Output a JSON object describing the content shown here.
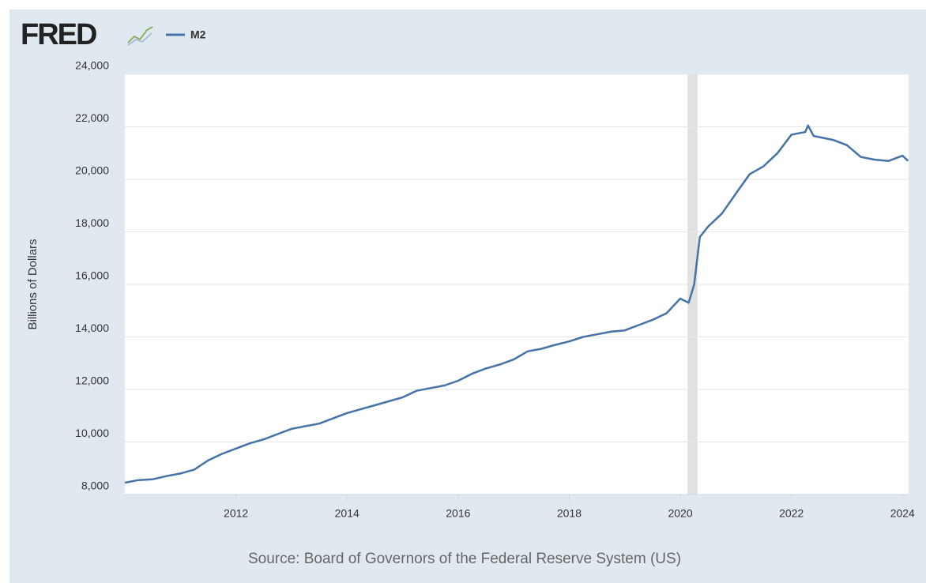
{
  "chart_data": {
    "type": "line",
    "brand": "FRED",
    "y_label": "Billions of Dollars",
    "source": "Source: Board of Governors of the Federal Reserve System (US)",
    "series": [
      {
        "name": "M2",
        "color": "#4572a7",
        "x": [
          2010.0,
          2010.25,
          2010.5,
          2010.75,
          2011.0,
          2011.25,
          2011.5,
          2011.75,
          2012.0,
          2012.25,
          2012.5,
          2012.75,
          2013.0,
          2013.25,
          2013.5,
          2013.75,
          2014.0,
          2014.25,
          2014.5,
          2014.75,
          2015.0,
          2015.25,
          2015.5,
          2015.75,
          2016.0,
          2016.25,
          2016.5,
          2016.75,
          2017.0,
          2017.25,
          2017.5,
          2017.75,
          2018.0,
          2018.25,
          2018.5,
          2018.75,
          2019.0,
          2019.25,
          2019.5,
          2019.75,
          2020.0,
          2020.15,
          2020.25,
          2020.35,
          2020.5,
          2020.75,
          2021.0,
          2021.25,
          2021.5,
          2021.75,
          2022.0,
          2022.25,
          2022.3,
          2022.4,
          2022.75,
          2023.0,
          2023.25,
          2023.5,
          2023.75,
          2024.0,
          2024.1
        ],
        "values": [
          8450,
          8550,
          8580,
          8700,
          8800,
          8950,
          9300,
          9550,
          9750,
          9950,
          10100,
          10300,
          10500,
          10600,
          10700,
          10900,
          11100,
          11250,
          11400,
          11550,
          11700,
          11950,
          12050,
          12150,
          12330,
          12600,
          12800,
          12950,
          13140,
          13450,
          13550,
          13700,
          13830,
          14000,
          14100,
          14200,
          14250,
          14450,
          14650,
          14900,
          15460,
          15300,
          16000,
          17800,
          18200,
          18700,
          19460,
          20200,
          20500,
          21000,
          21700,
          21800,
          22050,
          21650,
          21500,
          21300,
          20850,
          20750,
          20700,
          20900,
          20700
        ]
      }
    ],
    "recessions": [
      [
        2020.13,
        2020.31
      ]
    ],
    "xlim": [
      2010.0,
      2024.11
    ],
    "xticks": [
      2012,
      2014,
      2016,
      2018,
      2020,
      2022,
      2024
    ],
    "ylim": [
      8000,
      24000
    ],
    "yticks": [
      {
        "value": 8000,
        "label": "8,000"
      },
      {
        "value": 10000,
        "label": "10,000"
      },
      {
        "value": 12000,
        "label": "12,000"
      },
      {
        "value": 14000,
        "label": "14,000"
      },
      {
        "value": 16000,
        "label": "16,000"
      },
      {
        "value": 18000,
        "label": "18,000"
      },
      {
        "value": 20000,
        "label": "20,000"
      },
      {
        "value": 22000,
        "label": "22,000"
      },
      {
        "value": 24000,
        "label": "24,000"
      }
    ],
    "grid": true
  }
}
